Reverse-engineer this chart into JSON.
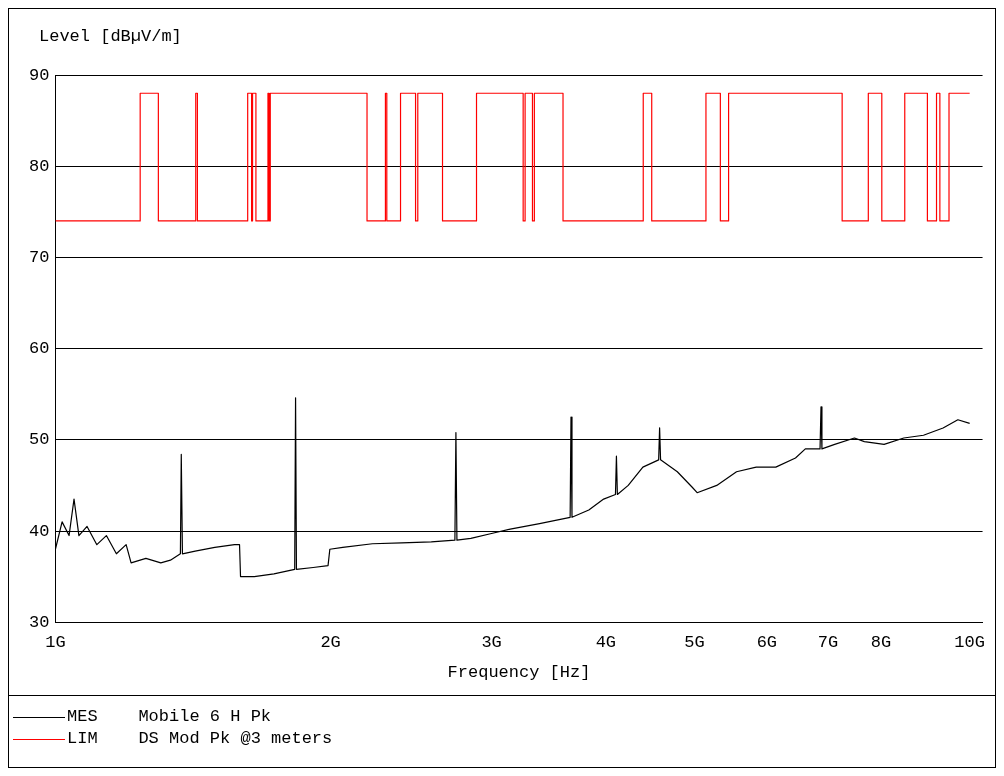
{
  "chart_data": {
    "type": "line",
    "xlabel": "Frequency [Hz]",
    "ylabel": "Level [dBµV/m]",
    "log": "x",
    "grid": "y",
    "legend": "bottom",
    "marker": "none",
    "line_style": "solid",
    "xlim": [
      1,
      10.33
    ],
    "ylim": [
      30,
      90
    ],
    "xticks": [
      {
        "value": 1,
        "label": "1G"
      },
      {
        "value": 2,
        "label": "2G"
      },
      {
        "value": 3,
        "label": "3G"
      },
      {
        "value": 4,
        "label": "4G"
      },
      {
        "value": 5,
        "label": "5G"
      },
      {
        "value": 6,
        "label": "6G"
      },
      {
        "value": 7,
        "label": "7G"
      },
      {
        "value": 8,
        "label": "8G"
      },
      {
        "value": 10,
        "label": "10G"
      }
    ],
    "yticks": [
      30,
      40,
      50,
      60,
      70,
      80,
      90
    ],
    "series": [
      {
        "name": "MES    Mobile 6 H Pk",
        "color": "#000000",
        "type": "line",
        "x": [
          1.0,
          1.017,
          1.035,
          1.048,
          1.061,
          1.083,
          1.11,
          1.137,
          1.166,
          1.195,
          1.21,
          1.256,
          1.304,
          1.336,
          1.37,
          1.373,
          1.377,
          1.422,
          1.494,
          1.57,
          1.59,
          1.594,
          1.65,
          1.734,
          1.827,
          1.831,
          1.835,
          1.914,
          1.987,
          1.996,
          2.062,
          2.222,
          2.392,
          2.577,
          2.735,
          2.742,
          2.749,
          2.847,
          2.991,
          3.144,
          3.385,
          3.656,
          3.664,
          3.673,
          3.832,
          3.978,
          4.098,
          4.108,
          4.118,
          4.232,
          4.391,
          4.569,
          4.58,
          4.591,
          4.789,
          4.972,
          5.034,
          5.289,
          5.559,
          5.841,
          6.137,
          6.449,
          6.611,
          6.86,
          6.877,
          6.893,
          7.118,
          7.481,
          7.67,
          8.061,
          8.471,
          8.902,
          9.352,
          9.707,
          10.0
        ],
        "values": [
          38,
          41,
          39.5,
          43.5,
          39.5,
          40.5,
          38.5,
          39.5,
          37.5,
          38.5,
          36.5,
          37,
          36.5,
          36.8,
          37.5,
          48.4,
          37.5,
          37.8,
          38.2,
          38.5,
          38.5,
          35,
          35,
          35.3,
          35.8,
          54.6,
          35.8,
          36,
          36.2,
          38,
          38.2,
          38.6,
          38.7,
          38.8,
          39,
          50.8,
          39,
          39.2,
          39.7,
          40.2,
          40.8,
          41.5,
          52.5,
          41.5,
          42.3,
          43.5,
          44,
          48.2,
          44,
          45,
          47,
          47.8,
          51.3,
          47.8,
          46.5,
          44.8,
          44.2,
          45,
          46.5,
          47,
          47,
          48,
          49,
          49,
          53.6,
          49,
          49.5,
          50.2,
          49.8,
          49.5,
          50.2,
          50.5,
          51.3,
          52.2,
          51.8
        ]
      },
      {
        "name": "LIM    DS Mod Pk @3 meters",
        "color": "#ff0000",
        "type": "step",
        "x": [
          1.0,
          1.238,
          1.296,
          1.424,
          1.43,
          1.623,
          1.639,
          1.643,
          1.657,
          1.708,
          1.713,
          1.718,
          2.192,
          2.296,
          2.304,
          2.385,
          2.477,
          2.491,
          2.651,
          2.888,
          3.248,
          3.264,
          3.325,
          3.341,
          3.591,
          4.395,
          4.49,
          5.147,
          5.337,
          5.449,
          7.253,
          7.747,
          8.015,
          8.492,
          8.99,
          9.199,
          9.277,
          9.493,
          10.0
        ],
        "values": [
          74,
          88,
          74,
          88,
          74,
          88,
          74,
          88,
          74,
          88,
          74,
          88,
          74,
          88,
          74,
          88,
          74,
          88,
          74,
          88,
          74,
          88,
          74,
          88,
          74,
          88,
          74,
          88,
          74,
          88,
          74,
          88,
          74,
          88,
          74,
          88,
          74,
          88,
          88
        ]
      }
    ]
  }
}
